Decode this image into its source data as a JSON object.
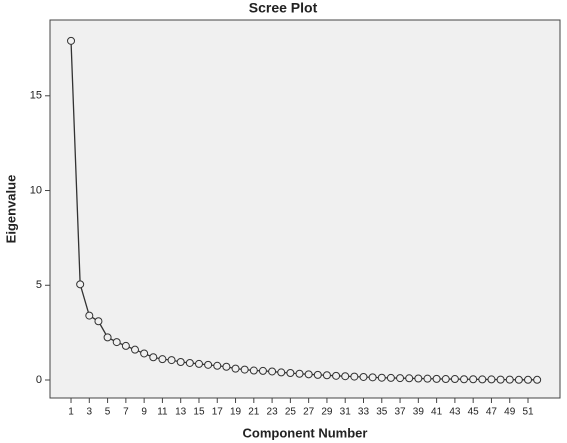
{
  "chart_data": {
    "type": "line",
    "title": "Scree Plot",
    "x_label": "Component Number",
    "y_label": "Eigenvalue",
    "x": [
      1,
      2,
      3,
      4,
      5,
      6,
      7,
      8,
      9,
      10,
      11,
      12,
      13,
      14,
      15,
      16,
      17,
      18,
      19,
      20,
      21,
      22,
      23,
      24,
      25,
      26,
      27,
      28,
      29,
      30,
      31,
      32,
      33,
      34,
      35,
      36,
      37,
      38,
      39,
      40,
      41,
      42,
      43,
      44,
      45,
      46,
      47,
      48,
      49,
      50,
      51,
      52
    ],
    "values": [
      17.9,
      5.05,
      3.4,
      3.1,
      2.25,
      2.0,
      1.8,
      1.6,
      1.4,
      1.2,
      1.1,
      1.05,
      0.95,
      0.9,
      0.85,
      0.8,
      0.75,
      0.7,
      0.6,
      0.55,
      0.5,
      0.48,
      0.45,
      0.4,
      0.37,
      0.33,
      0.3,
      0.27,
      0.25,
      0.22,
      0.2,
      0.18,
      0.16,
      0.14,
      0.12,
      0.11,
      0.1,
      0.09,
      0.08,
      0.07,
      0.06,
      0.05,
      0.05,
      0.04,
      0.04,
      0.03,
      0.03,
      0.02,
      0.02,
      0.01,
      0.01,
      0.01
    ],
    "color": "#333333",
    "xlim": [
      -1.3,
      54.5
    ],
    "xticks": [
      1,
      3,
      5,
      7,
      9,
      11,
      13,
      15,
      17,
      19,
      21,
      23,
      25,
      27,
      29,
      31,
      33,
      35,
      37,
      39,
      41,
      43,
      45,
      47,
      49,
      51
    ],
    "ylim": [
      -0.95,
      19
    ],
    "yticks": [
      0,
      5,
      10,
      15
    ],
    "grid": false
  }
}
